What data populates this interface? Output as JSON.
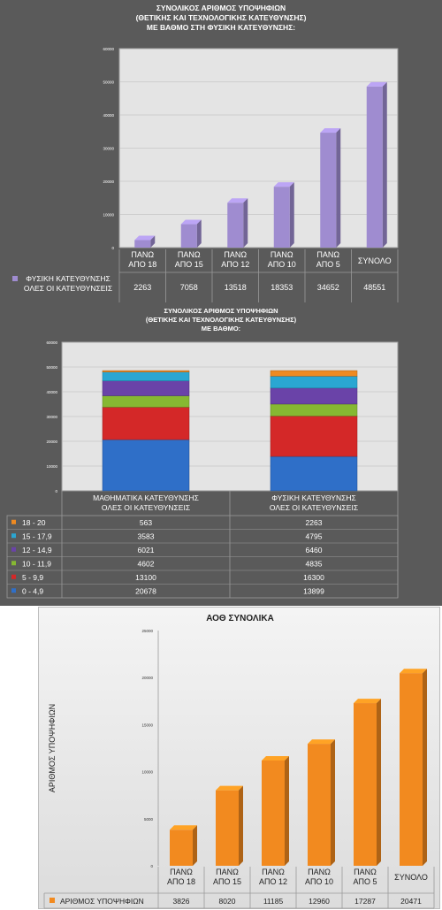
{
  "colors": {
    "purple": "#9f8cd0",
    "orange": "#f28a1f",
    "c0": "#2f6fc8",
    "c1": "#d42828",
    "c2": "#86b832",
    "c3": "#6a43a8",
    "c4": "#2aa6d2",
    "c5": "#ef8a21"
  },
  "panel1": {
    "title": [
      "ΣΥΝΟΛΙΚΟΣ ΑΡΙΘΜΟΣ ΥΠΟΨΗΦΙΩΝ",
      "(ΘΕΤΙΚΗΣ ΚΑΙ ΤΕΧΝΟΛΟΓΙΚΗΣ ΚΑΤΕΥΘΥΝΣΗΣ)",
      "ΜΕ ΒΑΘΜΟ ΣΤΗ ΦΥΣΙΚΗ ΚΑΤΕΥΘΥΝΣΗΣ:"
    ]
  },
  "panel2": {
    "title": [
      "ΣΥΝΟΛΙΚΟΣ ΑΡΙΘΜΟΣ ΥΠΟΨΗΦΙΩΝ",
      "(ΘΕΤΙΚΗΣ ΚΑΙ ΤΕΧΝΟΛΟΓΙΚΗΣ ΚΑΤΕΥΘΥΝΣΗΣ)",
      "ΜΕ ΒΑΘΜΟ:"
    ]
  },
  "panel3": {
    "title": "ΑΟΘ ΣΥΝΟΛΙΚΑ"
  },
  "chart_data": [
    {
      "type": "bar",
      "categories": [
        [
          "ΠΑΝΩ",
          "ΑΠΟ 18"
        ],
        [
          "ΠΑΝΩ",
          "ΑΠΟ 15"
        ],
        [
          "ΠΑΝΩ",
          "ΑΠΟ 12"
        ],
        [
          "ΠΑΝΩ",
          "ΑΠΟ 10"
        ],
        [
          "ΠΑΝΩ",
          "ΑΠΟ 5"
        ],
        [
          "ΣΥΝΟΛΟ"
        ]
      ],
      "series": [
        {
          "name": [
            "ΦΥΣΙΚΗ ΚΑΤΕΥΘΥΝΣΗΣ",
            "ΟΛΕΣ ΟΙ ΚΑΤΕΥΘΥΝΣΕΙΣ"
          ],
          "values": [
            2263,
            7058,
            13518,
            18353,
            34652,
            48551
          ]
        }
      ],
      "ylim": [
        0,
        60000
      ],
      "yticks": [
        "0",
        "10000",
        "20000",
        "30000",
        "40000",
        "50000",
        "60000"
      ],
      "grid": true,
      "legend": "data-table"
    },
    {
      "type": "bar",
      "stacked": true,
      "categories": [
        [
          "ΜΑΘΗΜΑΤΙΚΑ ΚΑΤΕΥΘΥΝΣΗΣ",
          "ΟΛΕΣ ΟΙ ΚΑΤΕΥΘΥΝΣΕΙΣ"
        ],
        [
          "ΦΥΣΙΚΗ ΚΑΤΕΥΘΥΝΣΗΣ",
          "ΟΛΕΣ ΟΙ ΚΑΤΕΥΘΥΝΣΕΙΣ"
        ]
      ],
      "series": [
        {
          "name": "0 - 4,9",
          "values": [
            20678,
            13899
          ]
        },
        {
          "name": "5 - 9,9",
          "values": [
            13100,
            16300
          ]
        },
        {
          "name": "10 - 11,9",
          "values": [
            4602,
            4835
          ]
        },
        {
          "name": "12 - 14,9",
          "values": [
            6021,
            6460
          ]
        },
        {
          "name": "15 - 17,9",
          "values": [
            3583,
            4795
          ]
        },
        {
          "name": "18 - 20",
          "values": [
            563,
            2263
          ]
        }
      ],
      "ylim": [
        0,
        60000
      ],
      "yticks": [
        "0",
        "10000",
        "20000",
        "30000",
        "40000",
        "50000",
        "60000"
      ],
      "grid": true,
      "legend": "data-table"
    },
    {
      "type": "bar",
      "title": "ΑΟΘ ΣΥΝΟΛΙΚΑ",
      "ylabel": "ΑΡΙΘΜΟΣ ΥΠΟΨΗΦΙΩΝ",
      "categories": [
        [
          "ΠΑΝΩ",
          "ΑΠΟ 18"
        ],
        [
          "ΠΑΝΩ",
          "ΑΠΟ 15"
        ],
        [
          "ΠΑΝΩ",
          "ΑΠΟ 12"
        ],
        [
          "ΠΑΝΩ",
          "ΑΠΟ 10"
        ],
        [
          "ΠΑΝΩ",
          "ΑΠΟ 5"
        ],
        [
          "ΣΥΝΟΛΟ"
        ]
      ],
      "series": [
        {
          "name": "ΑΡΙΘΜΟΣ ΥΠΟΨΗΦΙΩΝ",
          "values": [
            3826,
            8020,
            11185,
            12960,
            17287,
            20471
          ]
        }
      ],
      "ylim": [
        0,
        25000
      ],
      "yticks": [
        "0",
        "5000",
        "10000",
        "15000",
        "20000",
        "25000"
      ],
      "grid": false,
      "legend": "data-table"
    }
  ]
}
